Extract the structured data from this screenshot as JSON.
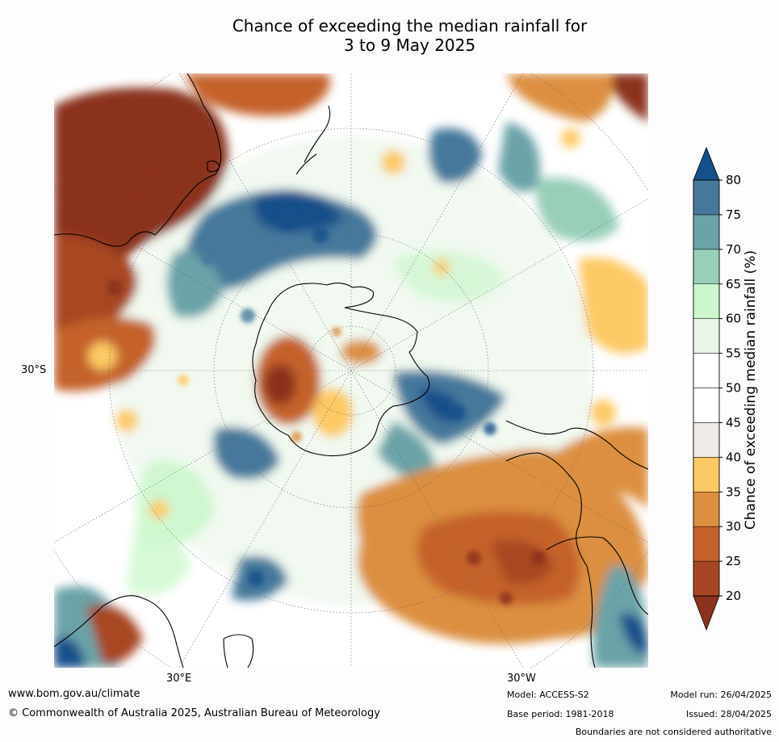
{
  "title": {
    "line1": "Chance of exceeding the median rainfall for",
    "line2": "3 to 9 May 2025"
  },
  "map": {
    "lat_label": "30°S",
    "lon_labels": {
      "east": "30°E",
      "west": "30°W"
    }
  },
  "legend": {
    "label": "Chance of exceeding median rainfall (%)",
    "ticks": [
      "20",
      "25",
      "30",
      "35",
      "40",
      "45",
      "50",
      "55",
      "60",
      "65",
      "70",
      "75",
      "80"
    ],
    "bins": [
      {
        "range": "20-25",
        "color": "#a84624"
      },
      {
        "range": "25-30",
        "color": "#c5622b"
      },
      {
        "range": "30-35",
        "color": "#dc8f3f"
      },
      {
        "range": "35-40",
        "color": "#fdc965"
      },
      {
        "range": "40-45",
        "color": "#eeebe6"
      },
      {
        "range": "45-50",
        "color": "#ffffff"
      },
      {
        "range": "50-55",
        "color": "#ffffff"
      },
      {
        "range": "55-60",
        "color": "#e8f5e8"
      },
      {
        "range": "60-65",
        "color": "#ccf7cc"
      },
      {
        "range": "65-70",
        "color": "#98cfb8"
      },
      {
        "range": "70-75",
        "color": "#6aa3a8"
      },
      {
        "range": "75-80",
        "color": "#45789b"
      }
    ],
    "under_color": "#8a321b",
    "over_color": "#15508a"
  },
  "footer": {
    "url": "www.bom.gov.au/climate",
    "copyright": "© Commonwealth of Australia 2025, Australian Bureau of Meteorology",
    "model": "Model: ACCESS-S2",
    "base_period": "Base period: 1981-2018",
    "model_run": "Model run: 26/04/2025",
    "issued": "Issued: 28/04/2025",
    "disclaimer": "Boundaries are not considered authoritative"
  }
}
